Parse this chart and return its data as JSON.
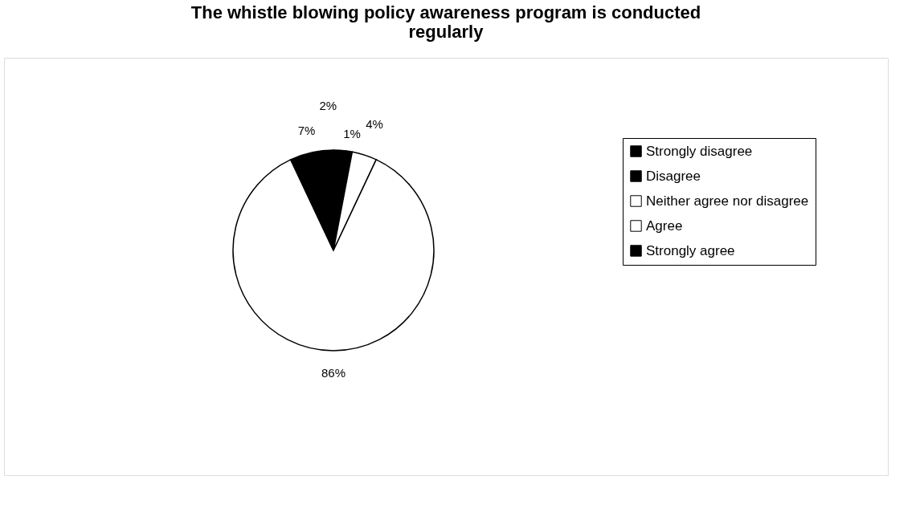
{
  "chart_data": {
    "type": "pie",
    "title": [
      "The whistle blowing policy awareness program is conducted",
      "regularly"
    ],
    "categories": [
      "Strongly disagree",
      "Disagree",
      "Neither agree nor disagree",
      "Agree",
      "Strongly agree"
    ],
    "values": [
      2,
      1,
      4,
      86,
      7
    ],
    "value_labels": [
      "2%",
      "1%",
      "4%",
      "86%",
      "7%"
    ],
    "colors": [
      "#000000",
      "#000000",
      "#ffffff",
      "#ffffff",
      "#000000"
    ],
    "legend": "right"
  }
}
